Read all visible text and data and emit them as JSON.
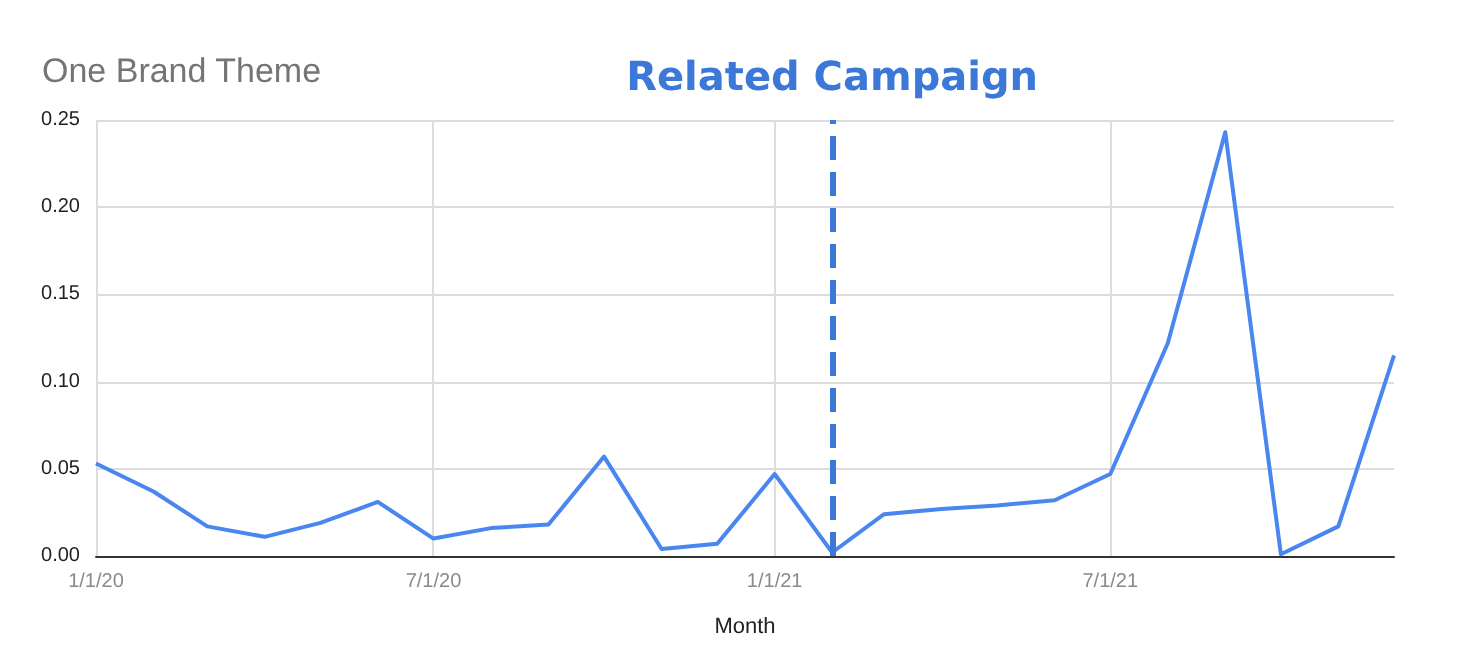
{
  "chart_data": {
    "type": "line",
    "title": "One Brand Theme",
    "xlabel": "Month",
    "x": [
      "2020-01",
      "2020-02",
      "2020-03",
      "2020-04",
      "2020-05",
      "2020-06",
      "2020-07",
      "2020-08",
      "2020-09",
      "2020-10",
      "2020-11",
      "2020-12",
      "2021-01",
      "2021-02",
      "2021-03",
      "2021-04",
      "2021-05",
      "2021-06",
      "2021-07",
      "2021-08",
      "2021-09",
      "2021-10",
      "2021-11",
      "2021-12"
    ],
    "series": [
      {
        "color": "#4a86f0",
        "values": [
          0.053,
          0.037,
          0.017,
          0.011,
          0.019,
          0.031,
          0.01,
          0.016,
          0.018,
          0.057,
          0.004,
          0.007,
          0.047,
          0.002,
          0.024,
          0.027,
          0.029,
          0.032,
          0.047,
          0.122,
          0.243,
          0.001,
          0.017,
          0.115
        ]
      }
    ],
    "xlim": [
      "2020-01",
      "2021-12"
    ],
    "xticks": [
      {
        "value": "2020-01",
        "label": "1/1/20"
      },
      {
        "value": "2020-07",
        "label": "7/1/20"
      },
      {
        "value": "2021-01",
        "label": "1/1/21"
      },
      {
        "value": "2021-07",
        "label": "7/1/21"
      }
    ],
    "ylim": [
      0,
      0.25
    ],
    "yticks": [
      {
        "value": 0,
        "label": "0.00"
      },
      {
        "value": 0.05,
        "label": "0.05"
      },
      {
        "value": 0.1,
        "label": "0.10"
      },
      {
        "value": 0.15,
        "label": "0.15"
      },
      {
        "value": 0.2,
        "label": "0.20"
      },
      {
        "value": 0.25,
        "label": "0.25"
      }
    ],
    "ref_lines": [
      {
        "axis": "x",
        "value": "2021-02",
        "label": "Related Campaign",
        "color": "#3c78d8",
        "line_style": "dashed"
      }
    ],
    "grid": true,
    "marker": "none",
    "line_style": "solid"
  }
}
